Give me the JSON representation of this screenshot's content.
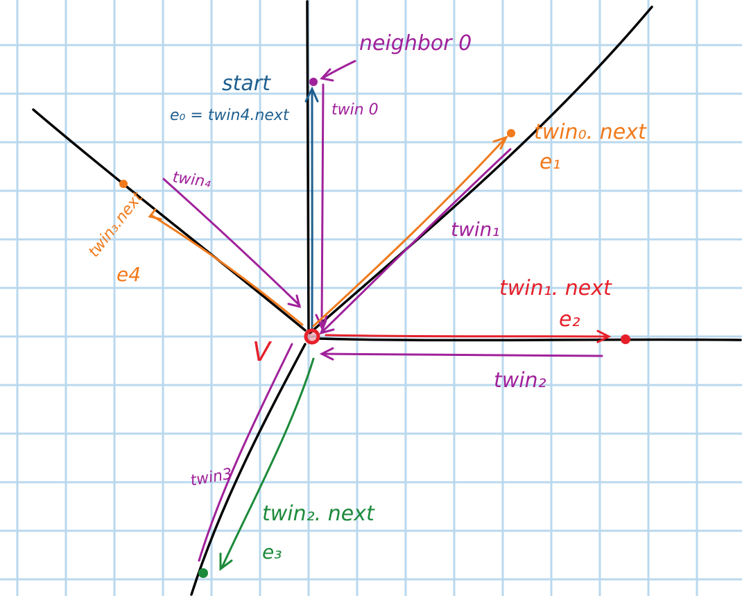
{
  "colors": {
    "grid": "#b9d8ee",
    "edge": "#000000",
    "blue": "#1f5f8f",
    "purple": "#a0219a",
    "orange": "#f07a1c",
    "red": "#e5202a",
    "green": "#1c8a3a"
  },
  "labels": {
    "neighbor0": "neighbor 0",
    "start": "start",
    "e0": "e₀ = twin4.next",
    "twin0": "twin 0",
    "twin0_next": "twin₀. next",
    "e1": "e₁",
    "twin1": "twin₁",
    "twin4": "twin₄",
    "twin3_next": "twin₃.next",
    "e4": "e4",
    "twin1_next": "twin₁. next",
    "e2": "e₂",
    "twin2": "twin₂",
    "v": "V",
    "twin3": "twin3",
    "twin2_next": "twin₂. next",
    "e3": "e₃"
  }
}
